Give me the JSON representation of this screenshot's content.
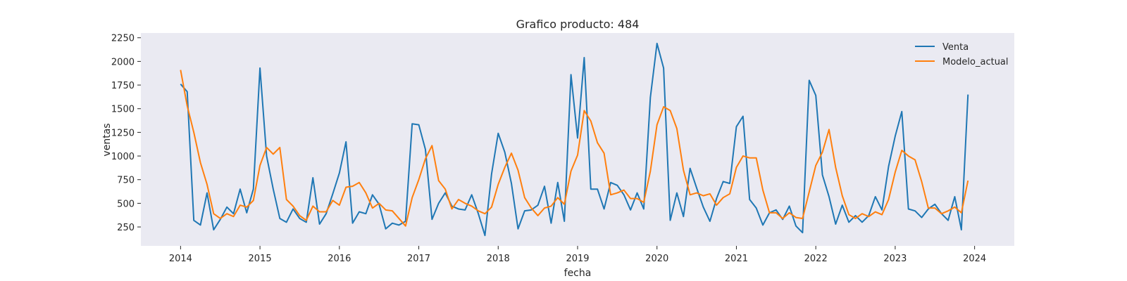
{
  "chart_data": {
    "type": "line",
    "title": "Grafico producto: 484",
    "xlabel": "fecha",
    "ylabel": "ventas",
    "xlim": [
      "2013-07-01",
      "2024-07-01"
    ],
    "ylim": [
      50,
      2300
    ],
    "x_ticks": [
      "2014",
      "2015",
      "2016",
      "2017",
      "2018",
      "2019",
      "2020",
      "2021",
      "2022",
      "2023",
      "2024"
    ],
    "y_ticks": [
      250,
      500,
      750,
      1000,
      1250,
      1500,
      1750,
      2000,
      2250
    ],
    "grid": false,
    "legend_position": "top-right",
    "x": [
      "2014-01",
      "2014-02",
      "2014-03",
      "2014-04",
      "2014-05",
      "2014-06",
      "2014-07",
      "2014-08",
      "2014-09",
      "2014-10",
      "2014-11",
      "2014-12",
      "2015-01",
      "2015-02",
      "2015-03",
      "2015-04",
      "2015-05",
      "2015-06",
      "2015-07",
      "2015-08",
      "2015-09",
      "2015-10",
      "2015-11",
      "2015-12",
      "2016-01",
      "2016-02",
      "2016-03",
      "2016-04",
      "2016-05",
      "2016-06",
      "2016-07",
      "2016-08",
      "2016-09",
      "2016-10",
      "2016-11",
      "2016-12",
      "2017-01",
      "2017-02",
      "2017-03",
      "2017-04",
      "2017-05",
      "2017-06",
      "2017-07",
      "2017-08",
      "2017-09",
      "2017-10",
      "2017-11",
      "2017-12",
      "2018-01",
      "2018-02",
      "2018-03",
      "2018-04",
      "2018-05",
      "2018-06",
      "2018-07",
      "2018-08",
      "2018-09",
      "2018-10",
      "2018-11",
      "2018-12",
      "2019-01",
      "2019-02",
      "2019-03",
      "2019-04",
      "2019-05",
      "2019-06",
      "2019-07",
      "2019-08",
      "2019-09",
      "2019-10",
      "2019-11",
      "2019-12",
      "2020-01",
      "2020-02",
      "2020-03",
      "2020-04",
      "2020-05",
      "2020-06",
      "2020-07",
      "2020-08",
      "2020-09",
      "2020-10",
      "2020-11",
      "2020-12",
      "2021-01",
      "2021-02",
      "2021-03",
      "2021-04",
      "2021-05",
      "2021-06",
      "2021-07",
      "2021-08",
      "2021-09",
      "2021-10",
      "2021-11",
      "2021-12",
      "2022-01",
      "2022-02",
      "2022-03",
      "2022-04",
      "2022-05",
      "2022-06",
      "2022-07",
      "2022-08",
      "2022-09",
      "2022-10",
      "2022-11",
      "2022-12",
      "2023-01",
      "2023-02",
      "2023-03",
      "2023-04",
      "2023-05",
      "2023-06",
      "2023-07",
      "2023-08",
      "2023-09",
      "2023-10",
      "2023-11",
      "2023-12"
    ],
    "series": [
      {
        "name": "Venta",
        "color": "#1f77b4",
        "values": [
          1760,
          1680,
          320,
          270,
          610,
          220,
          330,
          460,
          390,
          650,
          400,
          650,
          1930,
          1000,
          650,
          340,
          300,
          440,
          340,
          300,
          770,
          280,
          390,
          600,
          820,
          1150,
          290,
          410,
          390,
          590,
          490,
          230,
          290,
          270,
          310,
          1340,
          1330,
          1070,
          330,
          500,
          610,
          470,
          440,
          430,
          590,
          390,
          160,
          810,
          1240,
          1040,
          710,
          230,
          420,
          430,
          480,
          680,
          290,
          720,
          310,
          1860,
          1190,
          2040,
          650,
          650,
          440,
          720,
          690,
          590,
          430,
          610,
          440,
          1620,
          2190,
          1930,
          320,
          610,
          360,
          870,
          660,
          460,
          310,
          550,
          730,
          710,
          1310,
          1420,
          540,
          450,
          270,
          400,
          430,
          330,
          470,
          260,
          190,
          1800,
          1640,
          800,
          570,
          280,
          480,
          300,
          370,
          300,
          370,
          570,
          430,
          890,
          1210,
          1470,
          440,
          420,
          350,
          440,
          490,
          390,
          320,
          570,
          220,
          1650
        ]
      },
      {
        "name": "Modelo_actual",
        "color": "#ff7f0e",
        "values": [
          1910,
          1530,
          1250,
          930,
          700,
          390,
          340,
          390,
          360,
          480,
          460,
          530,
          900,
          1090,
          1020,
          1090,
          540,
          470,
          370,
          320,
          470,
          410,
          410,
          530,
          480,
          670,
          680,
          720,
          610,
          450,
          500,
          430,
          420,
          340,
          260,
          560,
          750,
          970,
          1110,
          740,
          650,
          440,
          540,
          500,
          470,
          420,
          390,
          460,
          700,
          880,
          1030,
          850,
          560,
          450,
          370,
          450,
          470,
          560,
          490,
          840,
          1010,
          1480,
          1370,
          1140,
          1030,
          590,
          610,
          640,
          550,
          550,
          510,
          840,
          1330,
          1520,
          1480,
          1290,
          850,
          590,
          610,
          580,
          600,
          480,
          560,
          600,
          880,
          1000,
          980,
          980,
          640,
          400,
          400,
          340,
          400,
          350,
          340,
          620,
          900,
          1040,
          1280,
          880,
          580,
          380,
          340,
          390,
          360,
          410,
          380,
          540,
          830,
          1060,
          1000,
          960,
          730,
          450,
          450,
          390,
          420,
          460,
          400,
          740
        ]
      }
    ]
  }
}
